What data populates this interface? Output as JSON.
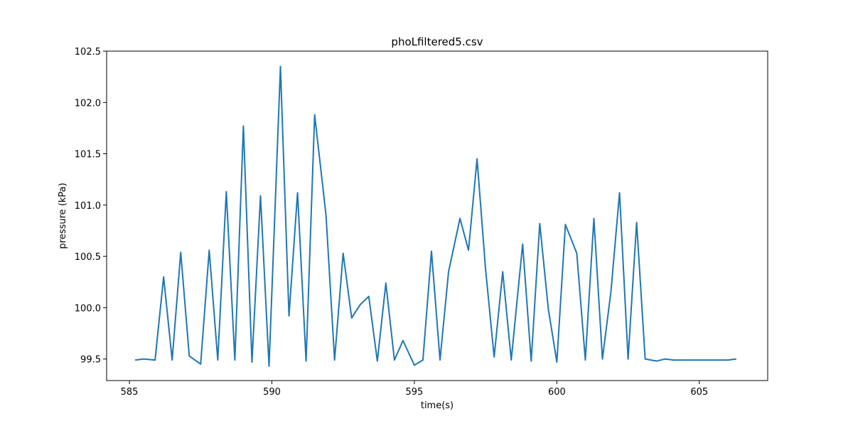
{
  "chart_data": {
    "type": "line",
    "title": "phoLfiltered5.csv",
    "xlabel": "time(s)",
    "ylabel": "pressure (kPa)",
    "xlim": [
      584.2,
      607.4
    ],
    "ylim": [
      99.29,
      102.5
    ],
    "xticks": [
      585,
      590,
      595,
      600,
      605
    ],
    "yticks": [
      99.5,
      100.0,
      100.5,
      101.0,
      101.5,
      102.0,
      102.5
    ],
    "xtick_labels": [
      "585",
      "590",
      "595",
      "600",
      "605"
    ],
    "ytick_labels": [
      "99.5",
      "100.0",
      "100.5",
      "101.0",
      "101.5",
      "102.0",
      "102.5"
    ],
    "grid": false,
    "legend": "none",
    "series": [
      {
        "color": "#1f77b4",
        "x": [
          585.2,
          585.5,
          585.9,
          586.2,
          586.5,
          586.8,
          587.1,
          587.5,
          587.8,
          588.1,
          588.4,
          588.7,
          589.0,
          589.3,
          589.6,
          589.9,
          590.3,
          590.6,
          590.9,
          591.2,
          591.5,
          591.9,
          592.2,
          592.5,
          592.8,
          593.1,
          593.4,
          593.7,
          594.0,
          594.3,
          594.6,
          595.0,
          595.3,
          595.6,
          595.9,
          596.2,
          596.6,
          596.9,
          597.2,
          597.5,
          597.8,
          598.1,
          598.4,
          598.8,
          599.1,
          599.4,
          599.7,
          600.0,
          600.3,
          600.7,
          601.0,
          601.3,
          601.6,
          601.9,
          602.2,
          602.5,
          602.8,
          603.1,
          603.5,
          603.8,
          604.1,
          604.4,
          604.7,
          605.0,
          605.3,
          605.6,
          606.0,
          606.3
        ],
        "y": [
          99.49,
          99.5,
          99.49,
          100.3,
          99.49,
          100.54,
          99.53,
          99.45,
          100.56,
          99.49,
          101.13,
          99.49,
          101.77,
          99.47,
          101.09,
          99.43,
          102.35,
          99.92,
          101.12,
          99.48,
          101.88,
          100.9,
          99.49,
          100.53,
          99.9,
          100.03,
          100.11,
          99.48,
          100.24,
          99.49,
          99.68,
          99.44,
          99.49,
          100.55,
          99.49,
          100.35,
          100.87,
          100.56,
          101.45,
          100.37,
          99.52,
          100.35,
          99.49,
          100.62,
          99.48,
          100.82,
          99.99,
          99.47,
          100.81,
          100.53,
          99.49,
          100.87,
          99.5,
          100.16,
          101.12,
          99.5,
          100.83,
          99.5,
          99.48,
          99.5,
          99.49,
          99.49,
          99.49,
          99.49,
          99.49,
          99.49,
          99.49,
          99.5
        ]
      }
    ]
  }
}
